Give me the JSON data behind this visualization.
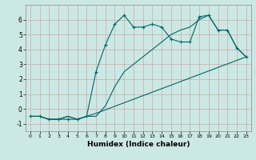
{
  "xlabel": "Humidex (Indice chaleur)",
  "background_color": "#cce8e4",
  "grid_color": "#cc9999",
  "line_color": "#006666",
  "ylim": [
    -1.5,
    7.0
  ],
  "xlim": [
    -0.5,
    23.5
  ],
  "yticks": [
    -1,
    0,
    1,
    2,
    3,
    4,
    5,
    6
  ],
  "xticks": [
    0,
    1,
    2,
    3,
    4,
    5,
    6,
    7,
    8,
    9,
    10,
    11,
    12,
    13,
    14,
    15,
    16,
    17,
    18,
    19,
    20,
    21,
    22,
    23
  ],
  "line1_x": [
    0,
    1,
    2,
    3,
    4,
    5,
    6,
    7,
    8,
    9,
    10,
    11,
    12,
    13,
    14,
    15,
    16,
    17,
    18,
    19,
    20,
    21,
    22,
    23
  ],
  "line1_y": [
    -0.5,
    -0.5,
    -0.7,
    -0.7,
    -0.7,
    -0.7,
    -0.5,
    2.5,
    4.3,
    5.7,
    6.3,
    5.5,
    5.5,
    5.7,
    5.5,
    4.7,
    4.5,
    4.5,
    6.2,
    6.3,
    5.3,
    5.3,
    4.1,
    3.5
  ],
  "line2_x": [
    0,
    1,
    2,
    3,
    4,
    5,
    6,
    7,
    8,
    9,
    10,
    11,
    12,
    13,
    14,
    15,
    16,
    17,
    18,
    19,
    20,
    21,
    22,
    23
  ],
  "line2_y": [
    -0.5,
    -0.5,
    -0.7,
    -0.7,
    -0.5,
    -0.7,
    -0.5,
    -0.5,
    0.2,
    1.5,
    2.5,
    3.0,
    3.5,
    4.0,
    4.5,
    5.0,
    5.3,
    5.5,
    6.0,
    6.3,
    5.3,
    5.3,
    4.1,
    3.5
  ],
  "line3_x": [
    0,
    1,
    2,
    3,
    4,
    5,
    6,
    7,
    23
  ],
  "line3_y": [
    -0.5,
    -0.5,
    -0.7,
    -0.7,
    -0.5,
    -0.7,
    -0.5,
    -0.3,
    3.5
  ]
}
